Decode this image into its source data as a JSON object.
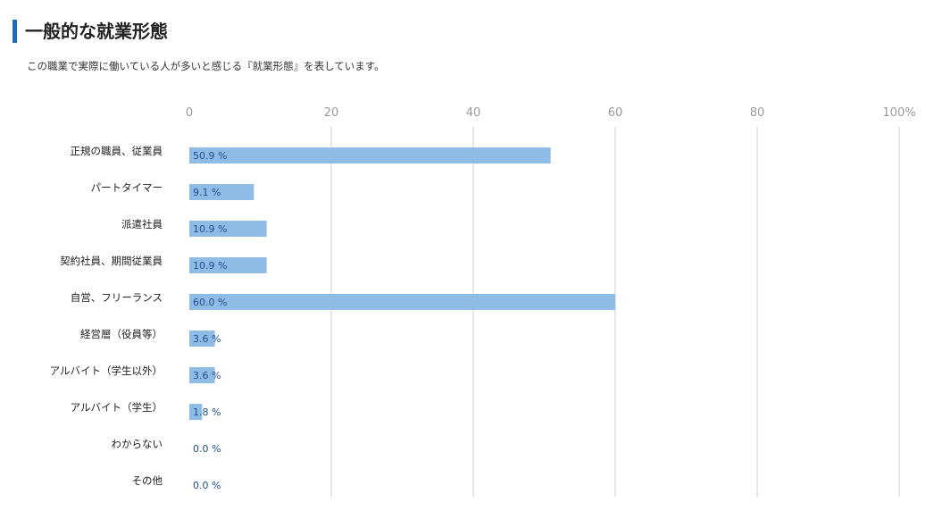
{
  "page": {
    "title": "一般的な就業形態",
    "description": "この職業で実際に働いている人が多いと感じる『就業形態』を表しています。"
  },
  "colors": {
    "accent": "#1a6fb8",
    "bar": "#8fbce6",
    "grid": "#dddddd",
    "value_text": "#1f4e8c"
  },
  "chart_data": {
    "type": "bar",
    "orientation": "horizontal",
    "categories": [
      "正規の職員、従業員",
      "パートタイマー",
      "派遣社員",
      "契約社員、期間従業員",
      "自営、フリーランス",
      "経営層（役員等）",
      "アルバイト（学生以外）",
      "アルバイト（学生）",
      "わからない",
      "その他"
    ],
    "values": [
      50.9,
      9.1,
      10.9,
      10.9,
      60.0,
      3.6,
      3.6,
      1.8,
      0.0,
      0.0
    ],
    "value_labels": [
      "50.9 %",
      "9.1 %",
      "10.9 %",
      "10.9 %",
      "60.0 %",
      "3.6 %",
      "3.6 %",
      "1.8 %",
      "0.0 %",
      "0.0 %"
    ],
    "xlim": [
      0,
      100
    ],
    "ticks": [
      0,
      20,
      40,
      60,
      80,
      100
    ],
    "tick_labels": [
      "0",
      "20",
      "40",
      "60",
      "80",
      "100%"
    ],
    "grid": true,
    "legend": "none"
  }
}
